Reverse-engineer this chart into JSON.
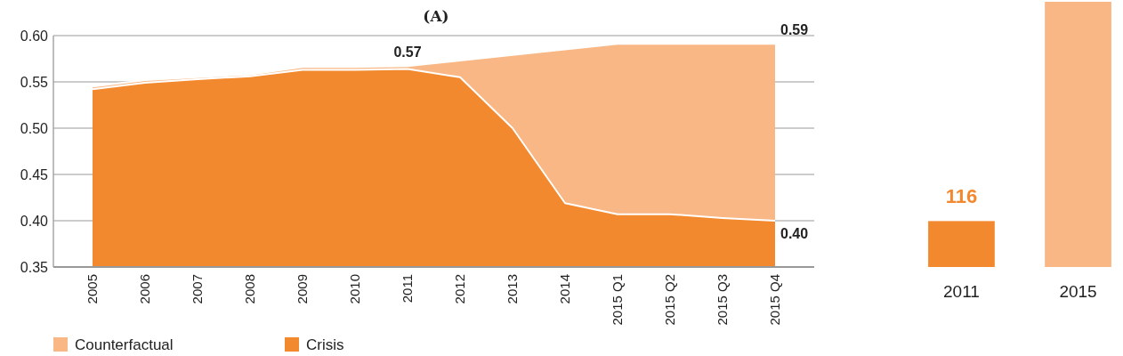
{
  "chart_data": [
    {
      "type": "area",
      "title": "(A)",
      "categories": [
        "2005",
        "2006",
        "2007",
        "2008",
        "2009",
        "2010",
        "2011",
        "2012",
        "2013",
        "2014",
        "2015 Q1",
        "2015 Q2",
        "2015 Q3",
        "2015 Q4"
      ],
      "series": [
        {
          "name": "Counterfactual",
          "color": "#f8b784",
          "values": [
            0.545,
            0.552,
            0.555,
            0.558,
            0.566,
            0.566,
            0.567,
            0.573,
            0.579,
            0.585,
            0.591,
            0.591,
            0.591,
            0.591
          ]
        },
        {
          "name": "Crisis",
          "color": "#f3892f",
          "values": [
            0.542,
            0.549,
            0.553,
            0.556,
            0.563,
            0.563,
            0.564,
            0.555,
            0.5,
            0.419,
            0.407,
            0.407,
            0.403,
            0.4
          ]
        }
      ],
      "ylim": [
        0.35,
        0.6
      ],
      "yticks": [
        {
          "value": 0.35,
          "label": "0.35"
        },
        {
          "value": 0.4,
          "label": "0.40"
        },
        {
          "value": 0.45,
          "label": "0.45"
        },
        {
          "value": 0.5,
          "label": "0.50"
        },
        {
          "value": 0.55,
          "label": "0.55"
        },
        {
          "value": 0.6,
          "label": "0.60"
        }
      ],
      "grid": "y",
      "legend": "bottom left",
      "annotations": [
        {
          "text": "0.57",
          "x": "2011",
          "y": 0.567
        },
        {
          "text": "0.59",
          "x": "2015 Q4",
          "y": 0.591
        },
        {
          "text": "0.40",
          "x": "2015 Q4",
          "y": 0.4
        }
      ]
    },
    {
      "type": "bar",
      "categories": [
        "2011",
        "2015"
      ],
      "values": [
        116,
        670
      ],
      "colors": [
        "#f3892f",
        "#f8b784"
      ],
      "value_labels": [
        "116",
        null
      ]
    }
  ]
}
